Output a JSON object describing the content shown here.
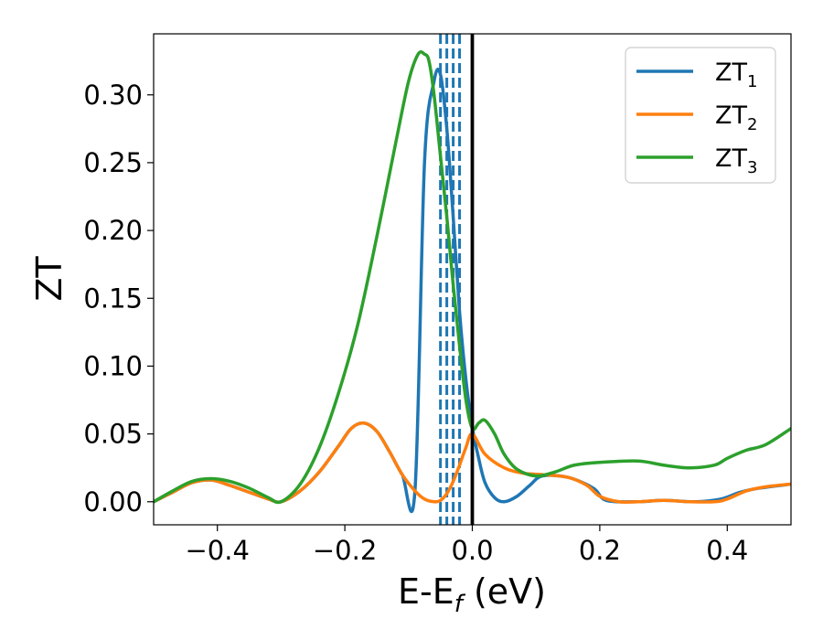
{
  "chart_data": {
    "type": "line",
    "xlabel": "E-E",
    "xlabel_sub": "f",
    "xlabel_unit": " (eV)",
    "ylabel": "ZT",
    "xlim": [
      -0.5,
      0.5
    ],
    "ylim": [
      -0.017,
      0.345
    ],
    "x_ticks": [
      -0.4,
      -0.2,
      0.0,
      0.2,
      0.4
    ],
    "x_tick_labels": [
      "−0.4",
      "−0.2",
      "0.0",
      "0.2",
      "0.4"
    ],
    "y_ticks": [
      0.0,
      0.05,
      0.1,
      0.15,
      0.2,
      0.25,
      0.3
    ],
    "y_tick_labels": [
      "0.00",
      "0.05",
      "0.10",
      "0.15",
      "0.20",
      "0.25",
      "0.30"
    ],
    "grid": false,
    "legend_position": "top-right",
    "vertical_lines": [
      {
        "x": 0.0,
        "style": "solid",
        "color": "#000000"
      },
      {
        "x": -0.05,
        "style": "dashed",
        "color": "#1f77b4"
      },
      {
        "x": -0.04,
        "style": "dashed",
        "color": "#1f77b4"
      },
      {
        "x": -0.03,
        "style": "dashed",
        "color": "#1f77b4"
      },
      {
        "x": -0.02,
        "style": "dashed",
        "color": "#1f77b4"
      }
    ],
    "series": [
      {
        "name": "ZT",
        "name_sub": "1",
        "color": "#1f77b4",
        "x": [
          -0.5,
          -0.47,
          -0.44,
          -0.41,
          -0.38,
          -0.35,
          -0.32,
          -0.3,
          -0.27,
          -0.24,
          -0.21,
          -0.19,
          -0.17,
          -0.15,
          -0.13,
          -0.11,
          -0.09,
          -0.075,
          -0.06,
          -0.05,
          -0.04,
          -0.03,
          -0.02,
          -0.01,
          0.0,
          0.01,
          0.02,
          0.035,
          0.05,
          0.07,
          0.09,
          0.11,
          0.15,
          0.19,
          0.21,
          0.26,
          0.3,
          0.35,
          0.39,
          0.42,
          0.45,
          0.5
        ],
        "y": [
          0.0,
          0.007,
          0.014,
          0.016,
          0.012,
          0.007,
          0.002,
          0.0,
          0.008,
          0.022,
          0.041,
          0.054,
          0.058,
          0.052,
          0.037,
          0.02,
          0.008,
          0.25,
          0.31,
          0.315,
          0.275,
          0.21,
          0.14,
          0.09,
          0.055,
          0.032,
          0.014,
          0.003,
          0.0,
          0.004,
          0.012,
          0.019,
          0.018,
          0.01,
          0.001,
          0.0,
          0.001,
          0.0,
          0.002,
          0.007,
          0.01,
          0.013
        ]
      },
      {
        "name": "ZT",
        "name_sub": "2",
        "color": "#ff7f0e",
        "x": [
          -0.5,
          -0.47,
          -0.44,
          -0.41,
          -0.38,
          -0.35,
          -0.32,
          -0.3,
          -0.27,
          -0.24,
          -0.21,
          -0.19,
          -0.17,
          -0.15,
          -0.13,
          -0.11,
          -0.09,
          -0.075,
          -0.06,
          -0.05,
          -0.04,
          -0.03,
          -0.02,
          -0.01,
          0.0,
          0.02,
          0.05,
          0.08,
          0.11,
          0.15,
          0.18,
          0.2,
          0.23,
          0.26,
          0.3,
          0.34,
          0.38,
          0.4,
          0.43,
          0.46,
          0.5
        ],
        "y": [
          0.0,
          0.007,
          0.014,
          0.016,
          0.012,
          0.007,
          0.002,
          0.0,
          0.008,
          0.022,
          0.041,
          0.054,
          0.058,
          0.052,
          0.037,
          0.02,
          0.008,
          0.002,
          0.0,
          0.001,
          0.006,
          0.015,
          0.027,
          0.04,
          0.05,
          0.035,
          0.025,
          0.021,
          0.02,
          0.018,
          0.012,
          0.004,
          0.0,
          0.0,
          0.001,
          0.0,
          0.0,
          0.002,
          0.008,
          0.011,
          0.013
        ]
      },
      {
        "name": "ZT",
        "name_sub": "3",
        "color": "#2ca02c",
        "x": [
          -0.5,
          -0.47,
          -0.44,
          -0.41,
          -0.38,
          -0.35,
          -0.32,
          -0.3,
          -0.27,
          -0.24,
          -0.21,
          -0.18,
          -0.15,
          -0.12,
          -0.1,
          -0.085,
          -0.075,
          -0.068,
          -0.06,
          -0.05,
          -0.04,
          -0.03,
          -0.02,
          -0.01,
          0.0,
          0.01,
          0.02,
          0.035,
          0.05,
          0.07,
          0.1,
          0.13,
          0.16,
          0.2,
          0.26,
          0.3,
          0.34,
          0.38,
          0.4,
          0.43,
          0.46,
          0.5
        ],
        "y": [
          0.0,
          0.008,
          0.015,
          0.017,
          0.015,
          0.01,
          0.003,
          0.0,
          0.013,
          0.04,
          0.08,
          0.13,
          0.195,
          0.265,
          0.31,
          0.33,
          0.33,
          0.325,
          0.3,
          0.255,
          0.21,
          0.16,
          0.115,
          0.075,
          0.054,
          0.058,
          0.06,
          0.05,
          0.035,
          0.024,
          0.019,
          0.022,
          0.027,
          0.029,
          0.03,
          0.027,
          0.025,
          0.027,
          0.032,
          0.038,
          0.042,
          0.054
        ]
      }
    ]
  }
}
